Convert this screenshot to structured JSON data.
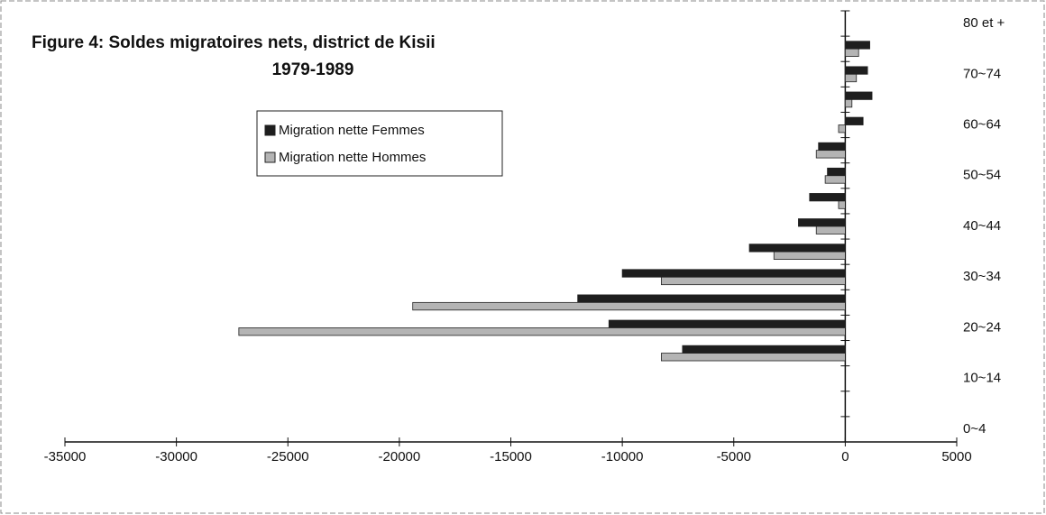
{
  "chart_data": {
    "type": "bar",
    "orientation": "horizontal",
    "title": "Figure 4: Soldes migratoires nets, district de Kisii",
    "subtitle": "1979-1989",
    "categories": [
      "0~4",
      null,
      "10~14",
      null,
      "20~24",
      null,
      "30~34",
      null,
      "40~44",
      null,
      "50~54",
      null,
      "60~64",
      null,
      "70~74",
      null,
      "80 et +"
    ],
    "series": [
      {
        "name": "Migration nette Femmes",
        "color": "#1e1e1e",
        "values": [
          0,
          0,
          0,
          -7300,
          -10600,
          -12000,
          -10000,
          -4300,
          -2100,
          -1600,
          -800,
          -1200,
          800,
          1200,
          1000,
          1100,
          0
        ]
      },
      {
        "name": "Migration nette Hommes",
        "color": "#b4b4b4",
        "values": [
          0,
          0,
          0,
          -8250,
          -27200,
          -19400,
          -8250,
          -3200,
          -1300,
          -300,
          -900,
          -1300,
          -300,
          300,
          500,
          600,
          0
        ]
      }
    ],
    "xlim": [
      -35000,
      5000
    ],
    "xticks": [
      -35000,
      -30000,
      -25000,
      -20000,
      -15000,
      -10000,
      -5000,
      0,
      5000
    ]
  }
}
